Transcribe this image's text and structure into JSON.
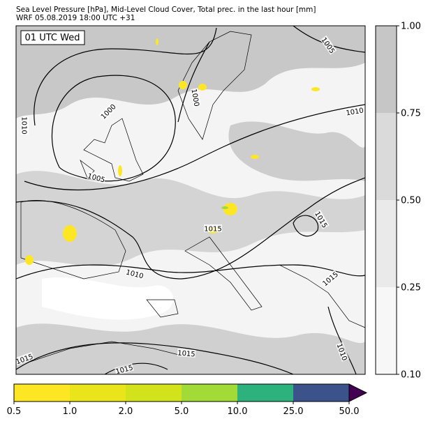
{
  "header": {
    "title": "Sea Level Pressure [hPa], Mid-Level Cloud Cover, Total prec. in the last hour [mm]",
    "subtitle": "WRF 05.08.2019 18:00 UTC +31"
  },
  "time_label": "01 UTC Wed",
  "isobar_labels": [
    "1005",
    "1000",
    "1000",
    "1010",
    "1010",
    "1005",
    "1015",
    "1015",
    "1010",
    "1015",
    "1010",
    "1015",
    "1015",
    "1015"
  ],
  "cloud_colorbar": {
    "labels": [
      "1.00",
      "0.75",
      "0.50",
      "0.25",
      "0.10"
    ],
    "colors": [
      "#c6c6c6",
      "#dadada",
      "#eaeaea",
      "#f7f7f7"
    ]
  },
  "precip_colorbar": {
    "labels": [
      "0.5",
      "1.0",
      "2.0",
      "5.0",
      "10.0",
      "25.0",
      "50.0"
    ],
    "colors": [
      "#fde725",
      "#eae51a",
      "#d2e21b",
      "#a2da37",
      "#2db27d",
      "#3b528b"
    ],
    "extend_color": "#440154"
  }
}
